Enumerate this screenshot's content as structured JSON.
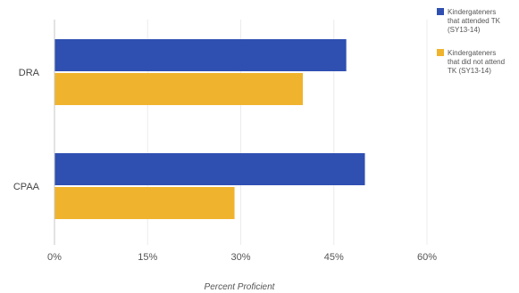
{
  "chart_data": {
    "type": "bar",
    "orientation": "horizontal",
    "categories": [
      "DRA",
      "CPAA"
    ],
    "series": [
      {
        "name": "Kindergateners that attended TK (SY13-14)",
        "legend_lines": [
          "Kindergateners",
          "that attended TK",
          "(SY13-14)"
        ],
        "color": "#2f4fb1",
        "values": [
          47,
          50
        ]
      },
      {
        "name": "Kindergateners that did not attend TK (SY13-14)",
        "legend_lines": [
          "Kindergateners",
          "that did not attend",
          "TK (SY13-14)"
        ],
        "color": "#f0b32d",
        "values": [
          40,
          29
        ]
      }
    ],
    "xlabel": "Percent Proficient",
    "ylabel": "",
    "xlim": [
      0,
      60
    ],
    "ticks": [
      "0%",
      "15%",
      "30%",
      "45%",
      "60%"
    ],
    "tick_values": [
      0,
      15,
      30,
      45,
      60
    ],
    "grid": "vertical, light",
    "legend_position": "top-right"
  }
}
